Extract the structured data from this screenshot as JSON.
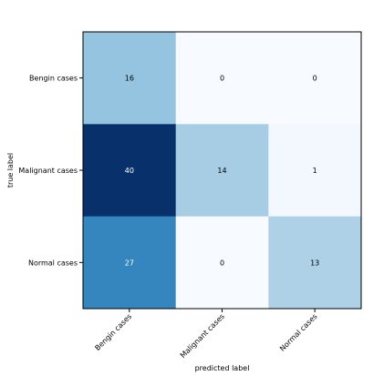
{
  "chart_data": {
    "type": "heatmap",
    "title": "",
    "xlabel": "predicted label",
    "ylabel": "true label",
    "x_categories": [
      "Bengin cases",
      "Malignant cases",
      "Normal cases"
    ],
    "y_categories": [
      "Bengin cases",
      "Malignant cases",
      "Normal cases"
    ],
    "values": [
      [
        16,
        0,
        0
      ],
      [
        40,
        14,
        1
      ],
      [
        27,
        0,
        13
      ]
    ],
    "colormap": "Blues",
    "color_range": [
      0,
      40
    ],
    "colors": {
      "low": "#f7fbff",
      "high": "#08306b",
      "text_dark": "#000000",
      "text_light": "#ffffff",
      "frame": "#000000"
    },
    "legend": "none",
    "grid": false
  }
}
